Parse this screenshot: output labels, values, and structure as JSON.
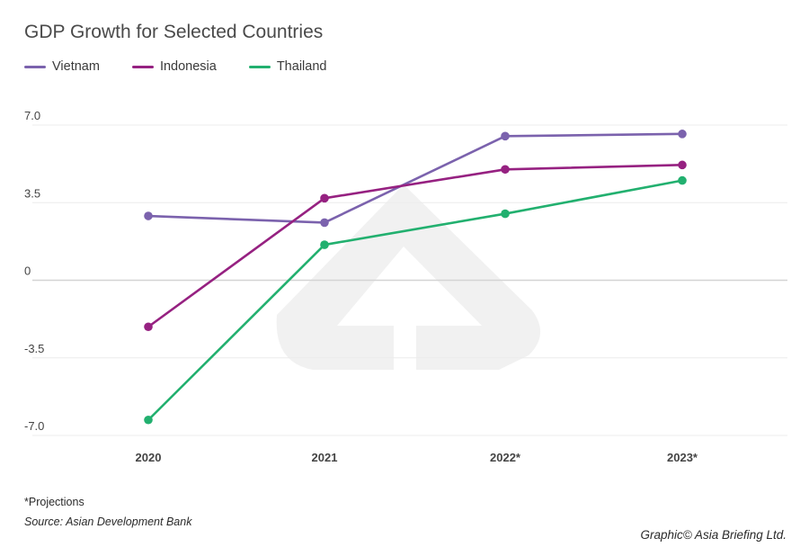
{
  "chart_data": {
    "type": "line",
    "title": "GDP Growth for Selected Countries",
    "categories": [
      "2020",
      "2021",
      "2022*",
      "2023*"
    ],
    "ylim": [
      -7.0,
      7.0
    ],
    "yticks": [
      7.0,
      3.5,
      0,
      -3.5,
      -7.0
    ],
    "ytick_labels": [
      "7.0",
      "3.5",
      "0",
      "-3.5",
      "-7.0"
    ],
    "grid": true,
    "legend_position": "top-left",
    "series": [
      {
        "name": "Vietnam",
        "color": "#7b62ad",
        "values": [
          2.9,
          2.6,
          6.5,
          6.6
        ]
      },
      {
        "name": "Indonesia",
        "color": "#962181",
        "values": [
          -2.1,
          3.7,
          5.0,
          5.2
        ]
      },
      {
        "name": "Thailand",
        "color": "#22b06f",
        "values": [
          -6.3,
          1.6,
          3.0,
          4.5
        ]
      }
    ]
  },
  "footer": {
    "note": "*Projections",
    "source": "Source: Asian Development Bank",
    "credit": "Graphic© Asia Briefing Ltd."
  }
}
